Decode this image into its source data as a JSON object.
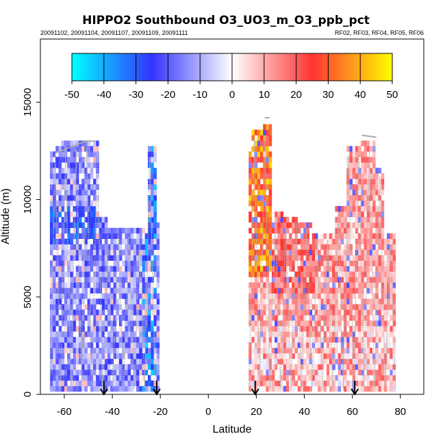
{
  "chart_data": {
    "type": "heatmap",
    "title": "HIPPO2 Southbound O3_UO3_m_O3_ppb_pct",
    "subtitle_left": "20091102, 20091104, 20091107, 20091109, 20091111",
    "subtitle_right": "RF02, RF03, RF04, RF05, RF06",
    "xlabel": "Latitude",
    "ylabel": "Altitude (m)",
    "xlim": [
      -70,
      90
    ],
    "ylim": [
      0,
      18000
    ],
    "x_ticks": [
      -60,
      -40,
      -20,
      0,
      20,
      40,
      60,
      80
    ],
    "y_ticks": [
      0,
      5000,
      10000,
      15000
    ],
    "colorbar": {
      "min": -50,
      "max": 50,
      "ticks": [
        -50,
        -40,
        -30,
        -20,
        -10,
        0,
        10,
        20,
        30,
        40,
        50
      ],
      "colors": [
        "#00ffff",
        "#3333ff",
        "#ffffff",
        "#ff3333",
        "#ffff00"
      ]
    },
    "arrow_latitudes": [
      -43.5,
      -21.5,
      19.5,
      61
    ]
  }
}
